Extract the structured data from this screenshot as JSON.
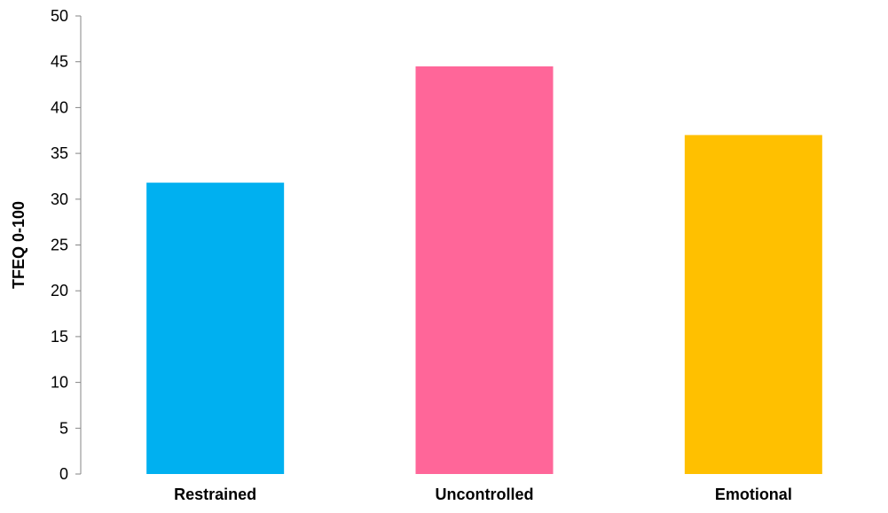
{
  "chart_data": {
    "type": "bar",
    "title": "",
    "xlabel": "",
    "ylabel": "TFEQ 0-100",
    "categories": [
      "Restrained",
      "Uncontrolled",
      "Emotional"
    ],
    "values": [
      31.8,
      44.5,
      37.0
    ],
    "colors": [
      "#00B0F0",
      "#FF6699",
      "#FFC000"
    ],
    "ylim": [
      0,
      50
    ],
    "yticks": [
      0,
      5,
      10,
      15,
      20,
      25,
      30,
      35,
      40,
      45,
      50
    ],
    "grid": false,
    "legend": "none"
  }
}
